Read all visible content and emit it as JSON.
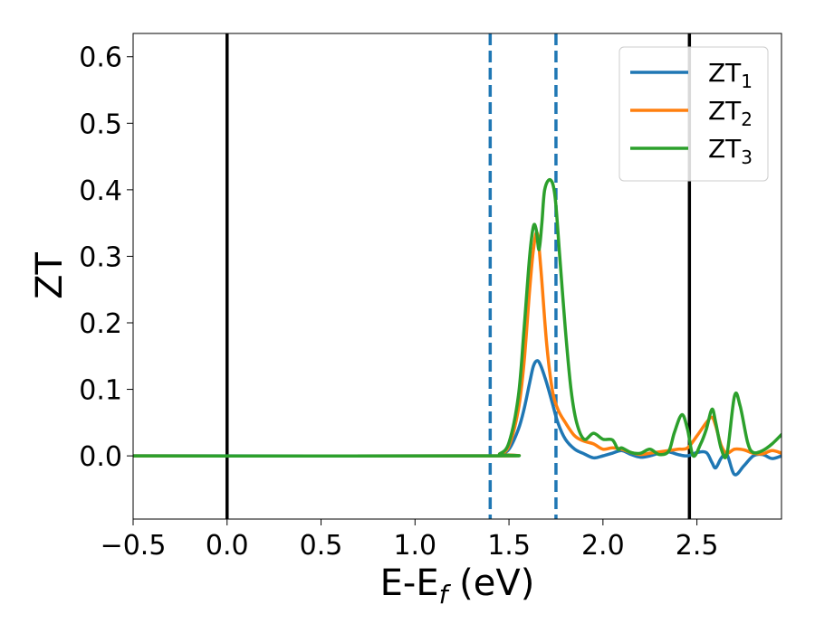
{
  "chart_data": {
    "type": "line",
    "xlabel": {
      "main": "E-E",
      "sub": "f",
      "unit": " (eV)"
    },
    "ylabel": "ZT",
    "xlim": [
      -0.5,
      2.95
    ],
    "ylim": [
      -0.095,
      0.635
    ],
    "xticks": [
      {
        "value": -0.5,
        "label": "−0.5"
      },
      {
        "value": 0.0,
        "label": "0.0"
      },
      {
        "value": 0.5,
        "label": "0.5"
      },
      {
        "value": 1.0,
        "label": "1.0"
      },
      {
        "value": 1.5,
        "label": "1.5"
      },
      {
        "value": 2.0,
        "label": "2.0"
      },
      {
        "value": 2.5,
        "label": "2.5"
      }
    ],
    "yticks": [
      {
        "value": 0.0,
        "label": "0.0"
      },
      {
        "value": 0.1,
        "label": "0.1"
      },
      {
        "value": 0.2,
        "label": "0.2"
      },
      {
        "value": 0.3,
        "label": "0.3"
      },
      {
        "value": 0.4,
        "label": "0.4"
      },
      {
        "value": 0.5,
        "label": "0.5"
      },
      {
        "value": 0.6,
        "label": "0.6"
      }
    ],
    "vlines": [
      {
        "x": 0.0,
        "color": "#000000",
        "style": "solid"
      },
      {
        "x": 2.46,
        "color": "#000000",
        "style": "solid"
      },
      {
        "x": 1.4,
        "color": "#1f77b4",
        "style": "dashed"
      },
      {
        "x": 1.75,
        "color": "#1f77b4",
        "style": "dashed"
      }
    ],
    "legend_position": "top-right",
    "series": [
      {
        "name": "ZT",
        "sub": "1",
        "color": "#1f77b4",
        "x": [
          -0.5,
          1.4,
          1.45,
          1.5,
          1.55,
          1.58,
          1.61,
          1.63,
          1.65,
          1.67,
          1.7,
          1.73,
          1.76,
          1.8,
          1.85,
          1.9,
          1.95,
          2.0,
          2.05,
          2.1,
          2.15,
          2.2,
          2.25,
          2.3,
          2.35,
          2.4,
          2.45,
          2.5,
          2.55,
          2.58,
          2.6,
          2.63,
          2.66,
          2.7,
          2.75,
          2.8,
          2.85,
          2.9,
          2.95
        ],
        "y": [
          0.0,
          0.0,
          0.002,
          0.01,
          0.04,
          0.07,
          0.11,
          0.135,
          0.143,
          0.135,
          0.11,
          0.08,
          0.05,
          0.025,
          0.01,
          0.003,
          -0.003,
          0.0,
          0.004,
          0.008,
          0.002,
          -0.002,
          0.0,
          0.004,
          0.006,
          0.002,
          0.0,
          0.005,
          0.005,
          -0.01,
          -0.018,
          -0.003,
          0.002,
          -0.028,
          -0.015,
          0.0,
          0.002,
          -0.004,
          0.0
        ]
      },
      {
        "name": "ZT",
        "sub": "2",
        "color": "#ff7f0e",
        "x": [
          -0.5,
          1.4,
          1.45,
          1.5,
          1.55,
          1.58,
          1.61,
          1.63,
          1.65,
          1.67,
          1.7,
          1.73,
          1.76,
          1.8,
          1.85,
          1.9,
          1.95,
          2.0,
          2.05,
          2.1,
          2.15,
          2.2,
          2.25,
          2.3,
          2.35,
          2.4,
          2.45,
          2.5,
          2.55,
          2.58,
          2.6,
          2.63,
          2.66,
          2.7,
          2.75,
          2.8,
          2.85,
          2.9,
          2.95
        ],
        "y": [
          0.0,
          0.0,
          0.003,
          0.015,
          0.07,
          0.14,
          0.25,
          0.31,
          0.335,
          0.28,
          0.17,
          0.1,
          0.07,
          0.05,
          0.03,
          0.022,
          0.018,
          0.01,
          0.012,
          0.01,
          0.005,
          0.002,
          0.004,
          0.006,
          0.008,
          0.01,
          0.012,
          0.03,
          0.05,
          0.058,
          0.045,
          0.015,
          0.004,
          0.01,
          0.009,
          0.004,
          0.003,
          0.008,
          0.004
        ]
      },
      {
        "name": "ZT",
        "sub": "3",
        "color": "#2ca02c",
        "x": [
          -0.5,
          1.4,
          1.45,
          1.5,
          1.55,
          1.58,
          1.61,
          1.63,
          1.645,
          1.66,
          1.675,
          1.69,
          1.72,
          1.745,
          1.77,
          1.8,
          1.83,
          1.86,
          1.9,
          1.95,
          2.0,
          2.05,
          2.08,
          2.1,
          2.15,
          2.2,
          2.25,
          2.3,
          2.35,
          2.38,
          2.42,
          2.45,
          2.48,
          2.52,
          2.55,
          2.58,
          2.6,
          2.63,
          2.66,
          2.7,
          2.73,
          2.77,
          2.8,
          2.85,
          2.9,
          2.95
        ],
        "y": [
          0.0,
          0.0,
          0.003,
          0.02,
          0.09,
          0.19,
          0.3,
          0.345,
          0.34,
          0.31,
          0.35,
          0.4,
          0.415,
          0.39,
          0.3,
          0.19,
          0.1,
          0.05,
          0.025,
          0.034,
          0.025,
          0.024,
          0.01,
          0.012,
          0.005,
          0.004,
          0.01,
          0.002,
          0.007,
          0.035,
          0.062,
          0.04,
          0.0,
          0.018,
          0.04,
          0.07,
          0.05,
          0.01,
          0.003,
          0.09,
          0.075,
          0.02,
          0.005,
          0.008,
          0.018,
          0.032
        ]
      }
    ]
  }
}
